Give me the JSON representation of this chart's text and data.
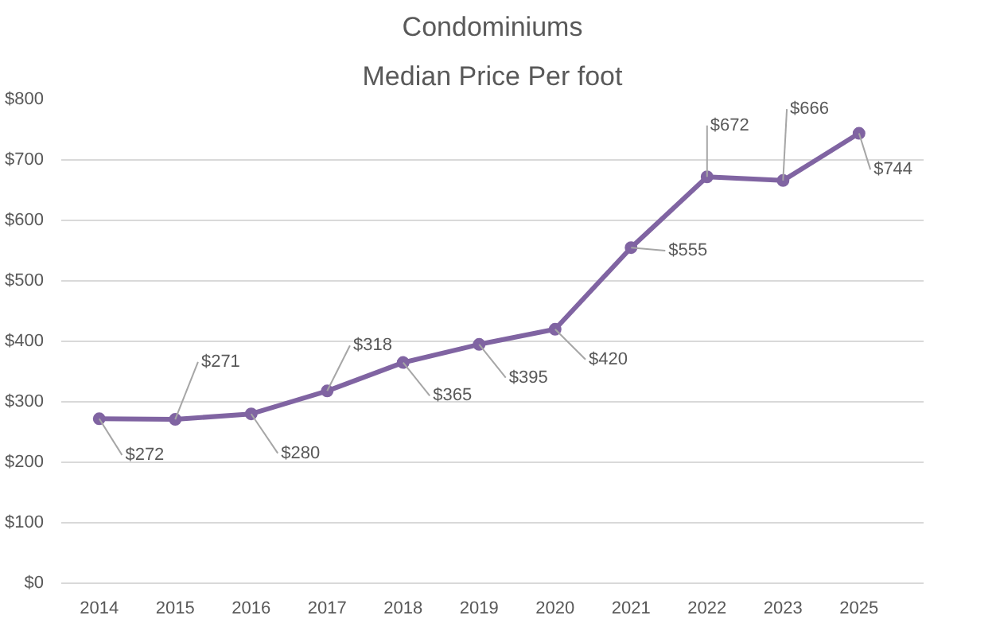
{
  "chart_data": {
    "type": "line",
    "title": "Condominiums",
    "subtitle": "Median Price Per foot",
    "categories": [
      "2014",
      "2015",
      "2016",
      "2017",
      "2018",
      "2019",
      "2020",
      "2021",
      "2022",
      "2023",
      "2025"
    ],
    "series": [
      {
        "color": "#8064a2",
        "values": [
          272,
          271,
          280,
          318,
          365,
          395,
          420,
          555,
          672,
          666,
          744
        ],
        "value_labels": [
          "$272",
          "$271",
          "$280",
          "$318",
          "$365",
          "$395",
          "$420",
          "$555",
          "$672",
          "$666",
          "$744"
        ]
      }
    ],
    "ylim": [
      0,
      800
    ],
    "yticks": [
      {
        "value": 0,
        "label": "$0"
      },
      {
        "value": 100,
        "label": "$100"
      },
      {
        "value": 200,
        "label": "$200"
      },
      {
        "value": 300,
        "label": "$300"
      },
      {
        "value": 400,
        "label": "$400"
      },
      {
        "value": 500,
        "label": "$500"
      },
      {
        "value": 600,
        "label": "$600"
      },
      {
        "value": 700,
        "label": "$700"
      },
      {
        "value": 800,
        "label": "$800"
      }
    ],
    "grid": "y",
    "marker": "circle",
    "line_style": "solid"
  }
}
